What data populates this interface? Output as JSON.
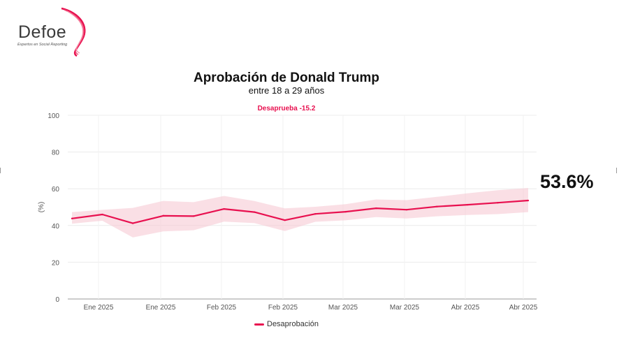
{
  "logo": {
    "brand": "Defoe",
    "tagline": "Expertos en Social Reporting"
  },
  "chart_data": {
    "type": "line",
    "title": "Aprobación de Donald Trump",
    "subtitle": "entre 18 a 29 años",
    "annotation": "Desaprueba -15.2",
    "current_value_label": "53.6%",
    "ylabel": "(%)",
    "ylim": [
      0,
      100
    ],
    "yticks": [
      0,
      20,
      40,
      60,
      80,
      100
    ],
    "grid": true,
    "legend_position": "bottom-center",
    "x_tick_labels": [
      "Ene 2025",
      "Ene 2025",
      "Feb 2025",
      "Feb 2025",
      "Mar 2025",
      "Mar 2025",
      "Abr 2025",
      "Abr 2025"
    ],
    "series": [
      {
        "name": "Desaprobación",
        "color": "#e8104f",
        "band_color": "#f7c9d4",
        "values": [
          43.8,
          46.0,
          41.2,
          45.3,
          45.1,
          49.0,
          47.3,
          42.9,
          46.3,
          47.5,
          49.4,
          48.6,
          50.3,
          51.3,
          52.4,
          53.6
        ],
        "lower": [
          41.0,
          42.6,
          33.5,
          36.8,
          37.4,
          42.1,
          41.3,
          37.0,
          42.0,
          42.8,
          44.6,
          43.8,
          45.0,
          45.7,
          46.2,
          47.3
        ],
        "upper": [
          47.3,
          48.5,
          49.6,
          53.4,
          52.7,
          56.1,
          53.3,
          49.3,
          50.2,
          51.6,
          54.2,
          53.8,
          55.6,
          57.5,
          59.2,
          60.4
        ]
      }
    ]
  }
}
